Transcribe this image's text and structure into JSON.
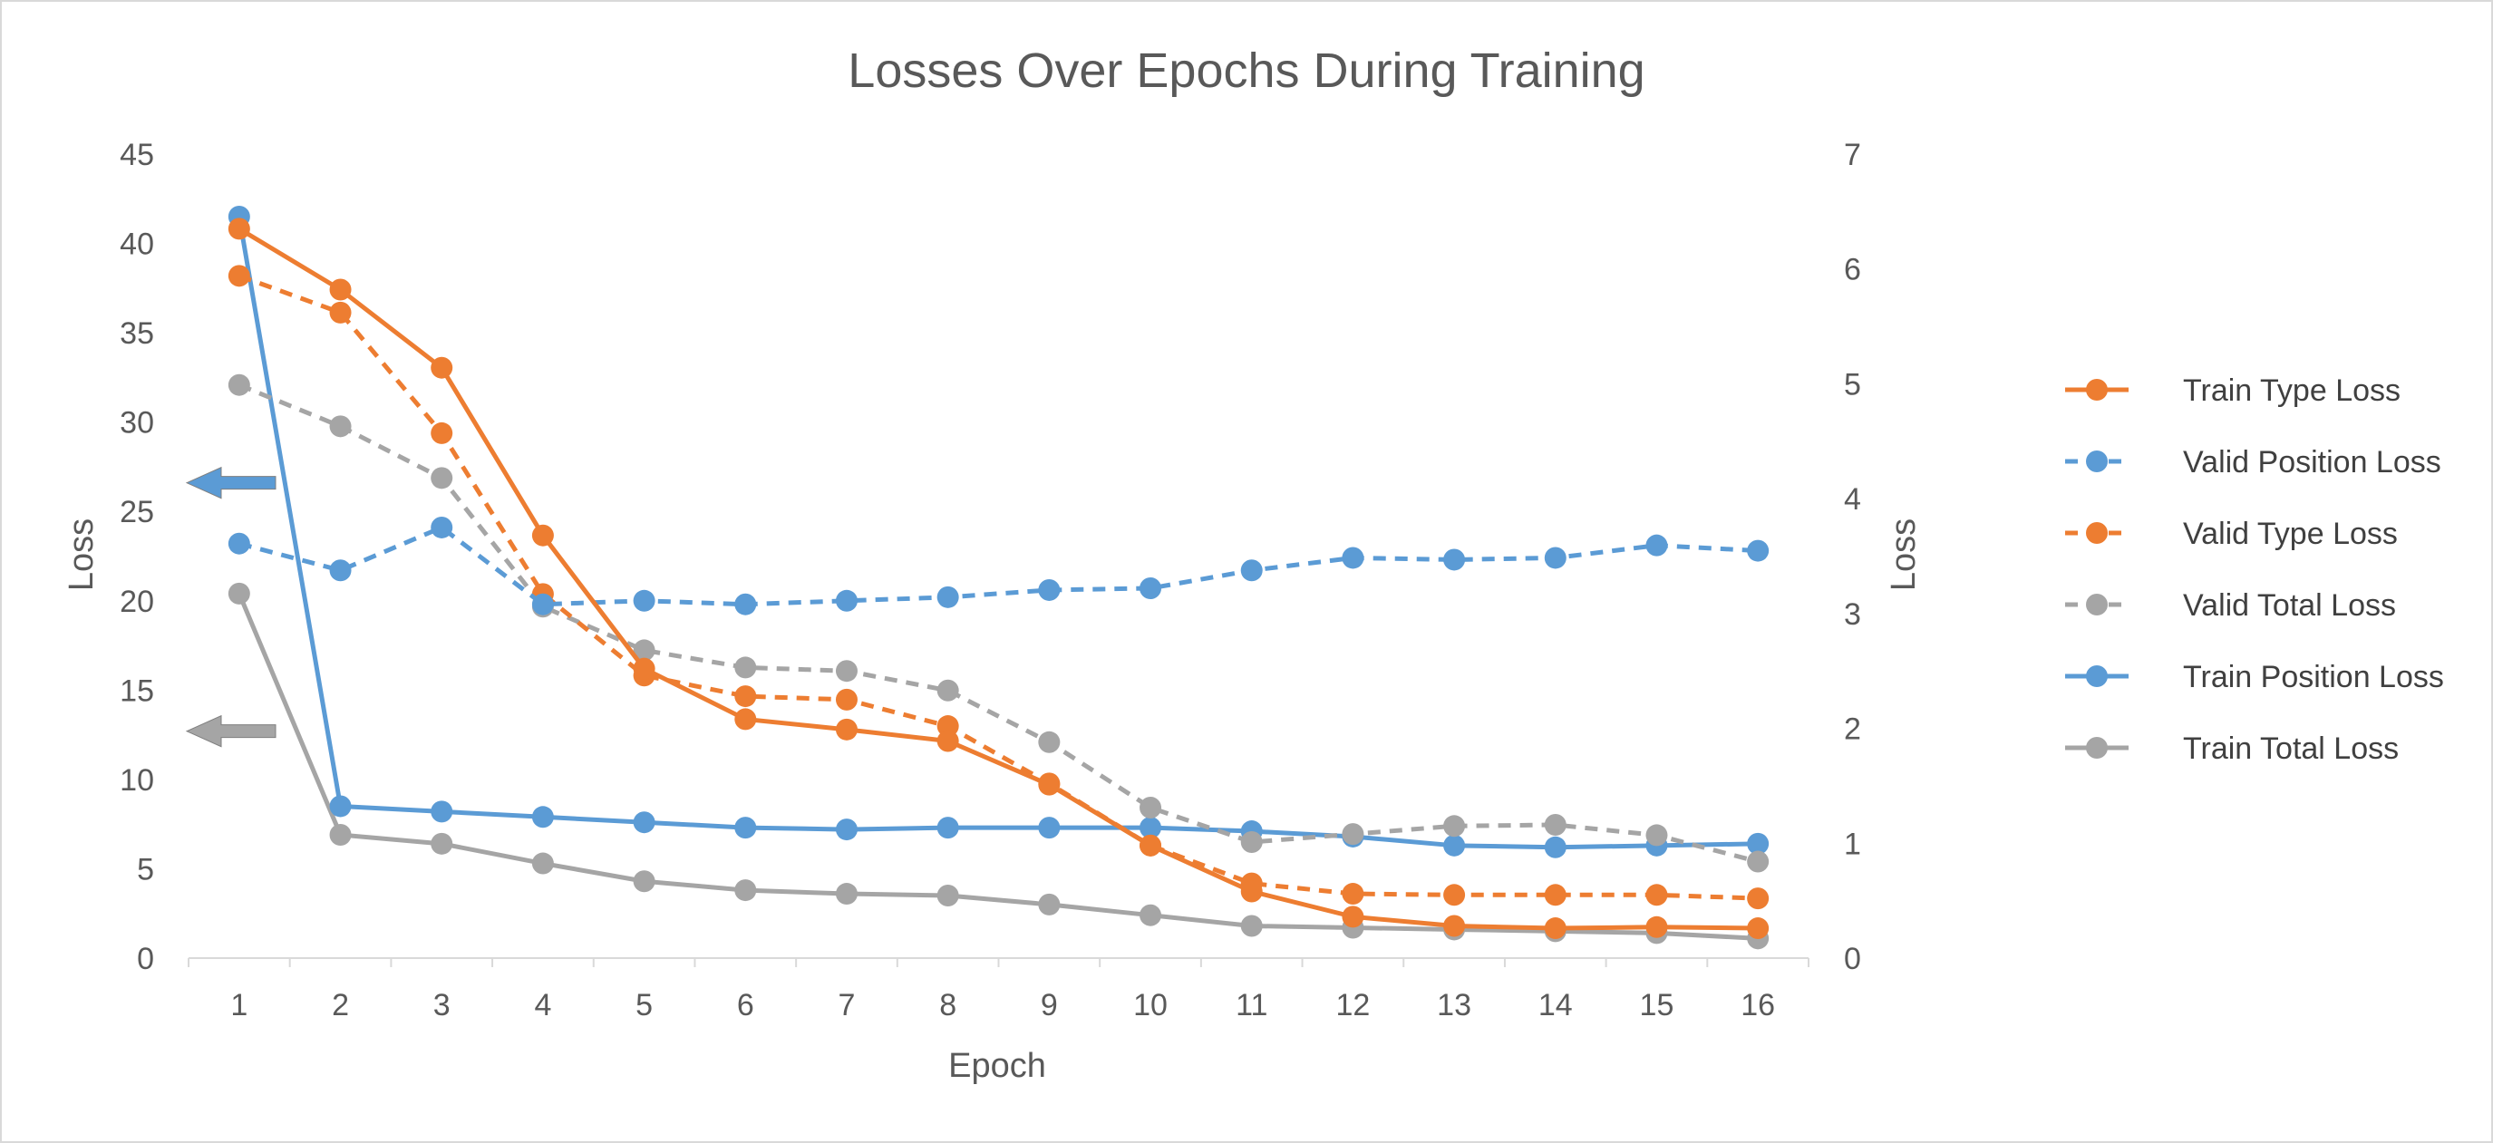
{
  "chart_data": {
    "type": "line",
    "title": "Losses Over Epochs During Training",
    "xlabel": "Epoch",
    "ylabel_left": "Loss",
    "ylabel_right": "Loss",
    "x": [
      1,
      2,
      3,
      4,
      5,
      6,
      7,
      8,
      9,
      10,
      11,
      12,
      13,
      14,
      15,
      16
    ],
    "ylim_left": [
      0,
      45
    ],
    "yticks_left": [
      0,
      5,
      10,
      15,
      20,
      25,
      30,
      35,
      40,
      45
    ],
    "ylim_right": [
      0,
      7
    ],
    "yticks_right": [
      0,
      1,
      2,
      3,
      4,
      5,
      6,
      7
    ],
    "grid": false,
    "legend_position": "right",
    "series": [
      {
        "name": "Train Type Loss",
        "axis": "right",
        "color": "#ED7D31",
        "dash": "solid",
        "values": [
          6.35,
          5.82,
          5.14,
          3.68,
          2.52,
          2.08,
          1.99,
          1.89,
          1.51,
          0.98,
          0.58,
          0.36,
          0.28,
          0.26,
          0.27,
          0.26
        ]
      },
      {
        "name": "Valid Position Loss",
        "axis": "left",
        "color": "#5B9BD5",
        "dash": "dashed",
        "values": [
          23.2,
          21.7,
          24.1,
          19.8,
          20.0,
          19.8,
          20.0,
          20.2,
          20.6,
          20.7,
          21.7,
          22.4,
          22.3,
          22.4,
          23.1,
          22.8
        ]
      },
      {
        "name": "Valid Type Loss",
        "axis": "right",
        "color": "#ED7D31",
        "dash": "dashed",
        "values": [
          5.94,
          5.62,
          4.57,
          3.17,
          2.46,
          2.28,
          2.25,
          2.02,
          1.52,
          0.98,
          0.65,
          0.56,
          0.55,
          0.55,
          0.55,
          0.52
        ]
      },
      {
        "name": "Valid Total Loss",
        "axis": "right",
        "color": "#A5A5A5",
        "dash": "dashed",
        "values": [
          4.99,
          4.63,
          4.18,
          3.06,
          2.68,
          2.53,
          2.5,
          2.33,
          1.88,
          1.31,
          1.01,
          1.08,
          1.15,
          1.16,
          1.07,
          0.84
        ]
      },
      {
        "name": "Train Position Loss",
        "axis": "left",
        "color": "#5B9BD5",
        "dash": "solid",
        "values": [
          41.5,
          8.5,
          8.2,
          7.9,
          7.6,
          7.3,
          7.2,
          7.3,
          7.3,
          7.3,
          7.1,
          6.8,
          6.3,
          6.2,
          6.3,
          6.4
        ]
      },
      {
        "name": "Train Total Loss",
        "axis": "left",
        "color": "#A5A5A5",
        "dash": "solid",
        "values": [
          20.4,
          6.9,
          6.4,
          5.3,
          4.3,
          3.8,
          3.6,
          3.5,
          3.0,
          2.4,
          1.8,
          1.7,
          1.6,
          1.5,
          1.4,
          1.1
        ]
      }
    ],
    "annotations": [
      {
        "type": "arrow",
        "direction": "left",
        "color": "#5B9BD5",
        "at_left_value": 26.6
      },
      {
        "type": "arrow",
        "direction": "left",
        "color": "#A5A5A5",
        "at_left_value": 12.7
      }
    ]
  }
}
